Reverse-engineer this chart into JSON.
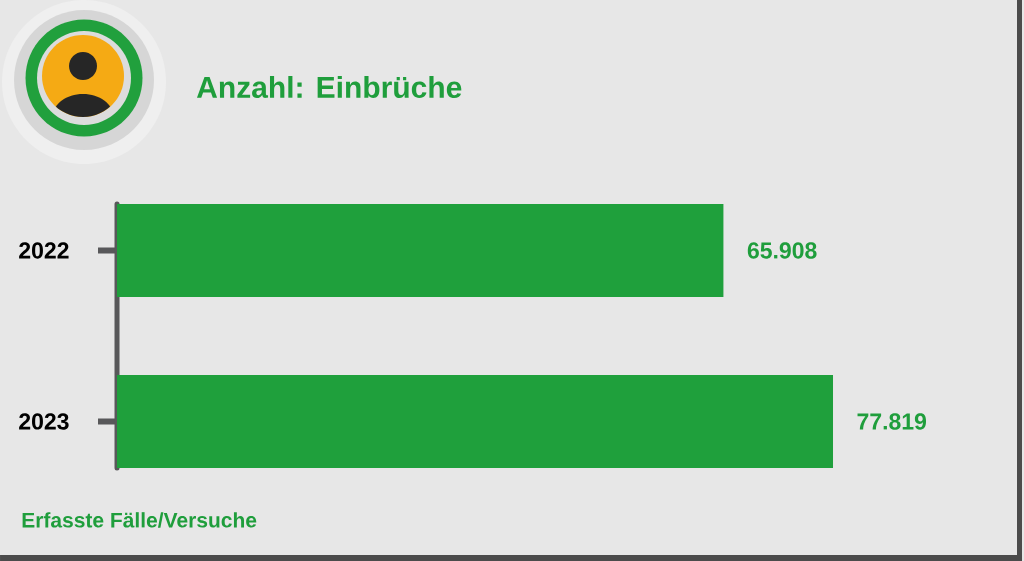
{
  "chart_data": {
    "type": "bar",
    "orientation": "horizontal",
    "title": "Anzahl: Einbrüche",
    "categories": [
      "2022",
      "2023"
    ],
    "values": [
      65908,
      77819
    ],
    "value_labels": [
      "65.908",
      "77.819"
    ],
    "color": "#1fa03c",
    "tick_labels": "y",
    "annotations": [
      "Erfasste Fälle/Versuche"
    ]
  }
}
